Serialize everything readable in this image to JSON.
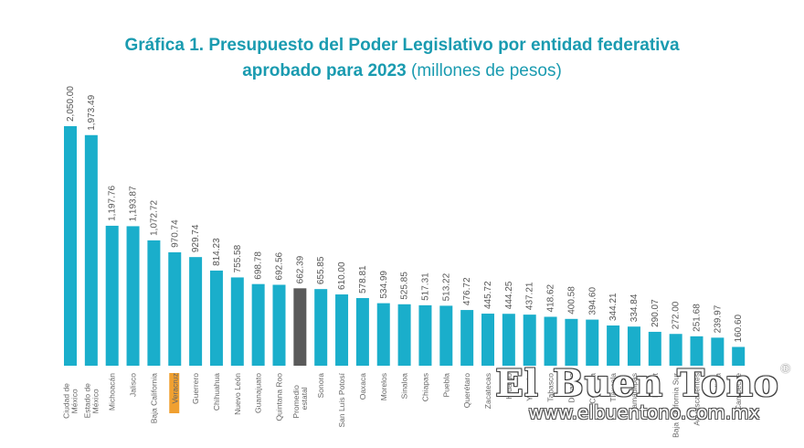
{
  "chart_data": {
    "type": "bar",
    "title": "Gráfica 1. Presupuesto del Poder Legislativo por entidad federativa aprobado para 2023",
    "title_line1": "Gráfica 1. Presupuesto del Poder Legislativo por entidad federativa",
    "title_line2_bold": "aprobado para 2023",
    "title_line2_normal": "(millones de pesos)",
    "xlabel": "",
    "ylabel": "",
    "ylim": [
      0,
      2100
    ],
    "grid": false,
    "categories": [
      "Ciudad de México",
      "Estado de México",
      "Michoacán",
      "Jalisco",
      "Baja California",
      "Veracruz",
      "Guerrero",
      "Chihuahua",
      "Nuevo León",
      "Guanajuato",
      "Quintana Roo",
      "Promedio estatal",
      "Sonora",
      "San Luis Potosí",
      "Oaxaca",
      "Morelos",
      "Sinaloa",
      "Chiapas",
      "Puebla",
      "Querétaro",
      "Zacatecas",
      "Hidalgo",
      "Yucatán",
      "Tabasco",
      "Durango",
      "Coahuila",
      "Tlaxcala",
      "Tamaulipas",
      "Nayarit",
      "Baja California Sur",
      "Aguascalientes",
      "Colima",
      "Campeche"
    ],
    "values": [
      2050.0,
      1973.49,
      1197.76,
      1193.87,
      1072.72,
      970.74,
      929.74,
      814.23,
      755.58,
      698.78,
      692.56,
      662.39,
      655.85,
      610.0,
      578.81,
      534.99,
      525.85,
      517.31,
      513.22,
      476.72,
      445.72,
      444.25,
      437.21,
      418.62,
      400.58,
      394.6,
      344.21,
      334.84,
      290.07,
      272.0,
      251.68,
      239.97,
      160.6
    ],
    "value_labels": [
      "2,050.00",
      "1,973.49",
      "1,197.76",
      "1,193.87",
      "1,072.72",
      "970.74",
      "929.74",
      "814.23",
      "755.58",
      "698.78",
      "692.56",
      "662.39",
      "655.85",
      "610.00",
      "578.81",
      "534.99",
      "525.85",
      "517.31",
      "513.22",
      "476.72",
      "445.72",
      "444.25",
      "437.21",
      "418.62",
      "400.58",
      "394.60",
      "344.21",
      "334.84",
      "290.07",
      "272.00",
      "251.68",
      "239.97",
      "160.60"
    ],
    "highlight_category": "Veracruz",
    "average_category": "Promedio estatal"
  },
  "colors": {
    "bar": "#1aaecb",
    "average_bar": "#5a5a5a",
    "title": "#1a9bb0",
    "highlight_label_bg": "#f0a030"
  },
  "watermark": {
    "brand": "El Buen Tono",
    "registered": "®",
    "url": "www.elbuentono.com.mx"
  }
}
